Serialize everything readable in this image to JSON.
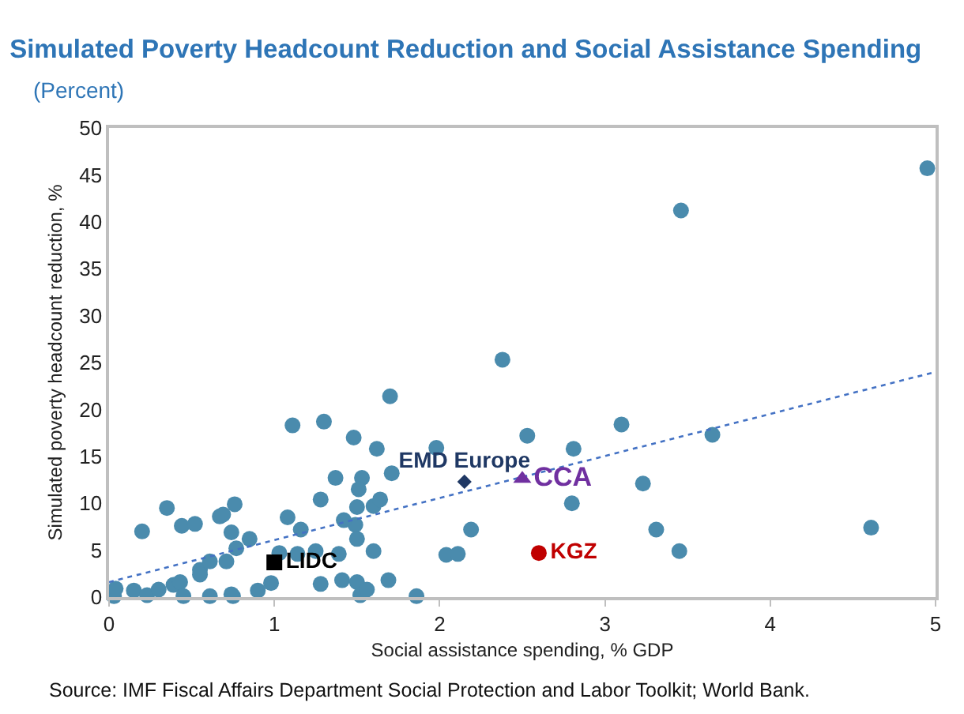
{
  "chart_data": {
    "type": "scatter",
    "title": "Simulated Poverty Headcount Reduction and Social Assistance Spending",
    "subtitle": "(Percent)",
    "xlabel": "Social assistance spending, % GDP",
    "ylabel": "Simulated poverty headcount reduction, %",
    "xlim": [
      0,
      5
    ],
    "xticks": [
      0,
      1,
      2,
      3,
      4,
      5
    ],
    "ylim": [
      0,
      50
    ],
    "yticks": [
      0,
      5,
      10,
      15,
      20,
      25,
      30,
      35,
      40,
      45,
      50
    ],
    "grid": false,
    "legend": false,
    "series": [
      {
        "color": "#4a8bad",
        "marker": "circle",
        "x": [
          0.03,
          0.04,
          0.15,
          0.23,
          0.3,
          0.2,
          0.35,
          0.39,
          0.43,
          0.44,
          0.45,
          0.52,
          0.55,
          0.55,
          0.61,
          0.61,
          0.67,
          0.69,
          0.74,
          0.71,
          0.76,
          0.77,
          0.75,
          0.74,
          0.85,
          0.9,
          0.98,
          1.03,
          1.08,
          1.11,
          1.14,
          1.16,
          1.25,
          1.28,
          1.3,
          1.37,
          1.39,
          1.28,
          1.41,
          1.48,
          1.5,
          1.49,
          1.53,
          1.51,
          1.5,
          1.42,
          1.5,
          1.52,
          1.56,
          1.6,
          1.6,
          1.64,
          1.62,
          1.71,
          1.69,
          1.7,
          1.98,
          2.53,
          2.81,
          3.1,
          2.8,
          3.23,
          3.31,
          3.45,
          2.19,
          2.04,
          2.11,
          1.86,
          3.65,
          4.61,
          2.38,
          3.46,
          4.95
        ],
        "values": [
          0.1,
          0.9,
          0.7,
          0.2,
          0.8,
          7.0,
          9.5,
          1.3,
          1.6,
          7.6,
          0.1,
          7.8,
          2.9,
          2.4,
          3.8,
          0.1,
          8.6,
          8.8,
          6.9,
          3.8,
          9.9,
          5.2,
          0.1,
          0.3,
          6.2,
          0.7,
          1.5,
          4.7,
          8.5,
          18.3,
          4.6,
          7.2,
          4.9,
          1.4,
          18.7,
          12.7,
          4.6,
          10.4,
          1.8,
          17.0,
          9.6,
          7.7,
          12.7,
          11.5,
          6.2,
          8.2,
          1.6,
          0.2,
          0.8,
          4.9,
          9.7,
          10.4,
          15.8,
          13.2,
          1.8,
          21.4,
          15.9,
          17.2,
          15.8,
          18.4,
          10.0,
          12.1,
          7.2,
          4.9,
          7.2,
          4.5,
          4.6,
          0.1,
          17.3,
          7.4,
          25.3,
          41.2,
          45.7
        ]
      },
      {
        "type": "line",
        "color": "#4472c4",
        "line_style": "dotted",
        "x": [
          0,
          5
        ],
        "values": [
          1.6,
          24.0
        ]
      },
      {
        "name": "LIDC",
        "color": "#000000",
        "marker": "square",
        "x": [
          1.0
        ],
        "values": [
          3.7
        ]
      },
      {
        "name": "EMD Europe",
        "color": "#1f3864",
        "marker": "diamond",
        "x": [
          2.15
        ],
        "values": [
          12.3
        ]
      },
      {
        "name": "CCA",
        "color": "#7030a0",
        "marker": "triangle",
        "x": [
          2.5
        ],
        "values": [
          12.6
        ]
      },
      {
        "name": "KGZ",
        "color": "#c00000",
        "marker": "circle",
        "x": [
          2.6
        ],
        "values": [
          4.7
        ]
      }
    ],
    "annotations": [
      "Source: IMF Fiscal Affairs Department Social Protection and Labor Toolkit; World Bank."
    ]
  }
}
